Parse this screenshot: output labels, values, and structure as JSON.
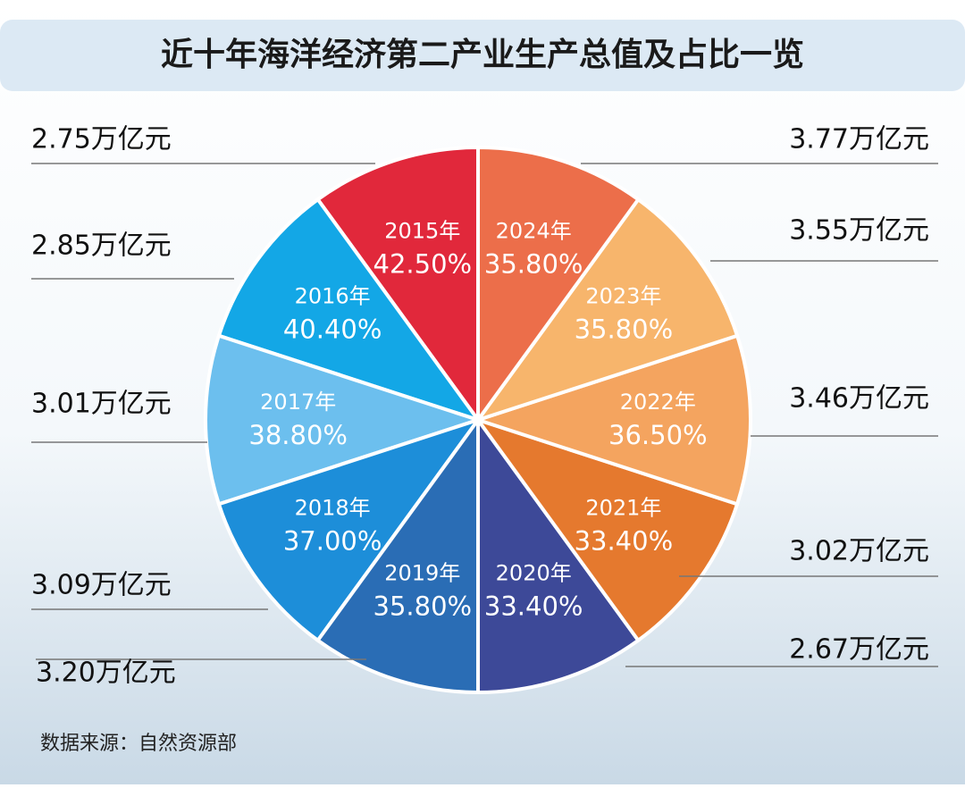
{
  "chart_data": {
    "type": "pie",
    "title": "近十年海洋经济第二产业生产总值及占比一览",
    "source": "数据来源：自然资源部",
    "categories": [
      "2015年",
      "2016年",
      "2017年",
      "2018年",
      "2019年",
      "2020年",
      "2021年",
      "2022年",
      "2023年",
      "2024年"
    ],
    "values": [
      42.5,
      40.4,
      38.8,
      37,
      35.8,
      33.4,
      33.4,
      36.5,
      35.8,
      35.8
    ],
    "value_labels": [
      "42.50%",
      "40.40%",
      "38.80%",
      "37.00%",
      "35.80%",
      "33.40%",
      "33.40%",
      "36.50%",
      "35.80%",
      "35.80%"
    ],
    "output_values": [
      2.75,
      2.85,
      3.01,
      3.09,
      3.2,
      2.67,
      3.02,
      3.46,
      3.55,
      3.77
    ],
    "output_labels": [
      "2.75万亿元",
      "2.85万亿元",
      "3.01万亿元",
      "3.09万亿元",
      "3.20万亿元",
      "2.67万亿元",
      "3.02万亿元",
      "3.46万亿元",
      "3.55万亿元",
      "3.77万亿元"
    ],
    "colors": [
      "#e1283b",
      "#13a7e6",
      "#6cbfee",
      "#1d8ed9",
      "#2a6db5",
      "#3d4998",
      "#e5792e",
      "#f4a45f",
      "#f7b56c",
      "#ec6e4a"
    ]
  }
}
